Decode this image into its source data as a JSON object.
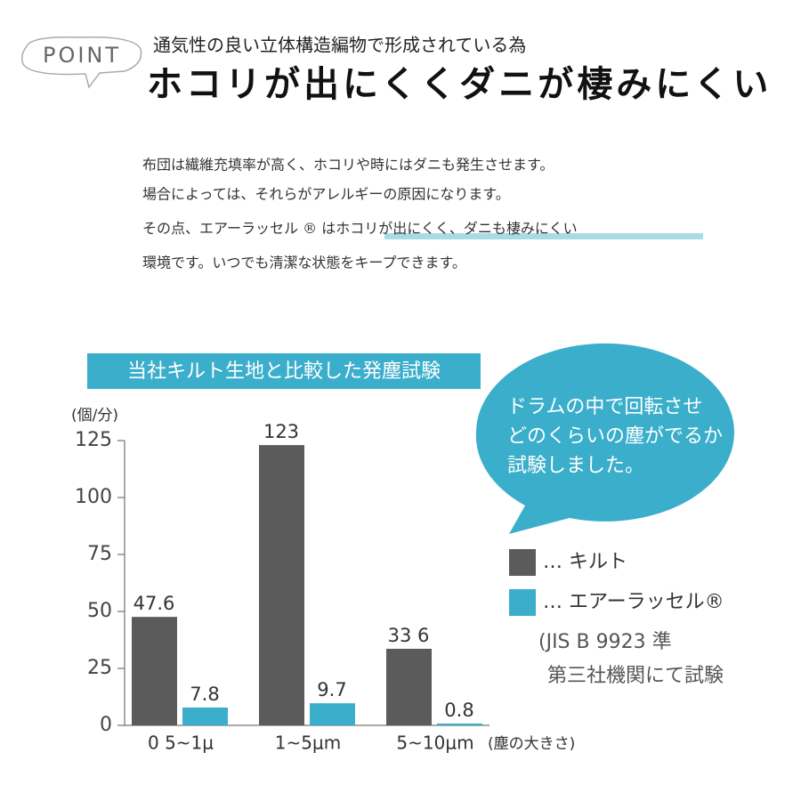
{
  "header": {
    "badge": "POINT",
    "subtitle": "通気性の良い立体構造編物で形成されている為",
    "title": "ホコリが出にくくダニが棲みにくい"
  },
  "body": {
    "lines": [
      "布団は繊維充填率が高く、ホコリや時にはダニも発生させます。",
      "場合によっては、それらがアレルギーの原因になります。",
      [
        "その点、エアーラッセル ® は",
        "ホコリが出にくく、ダニも棲みにくい"
      ],
      "環境です。いつでも清潔な状態をキープできます。"
    ]
  },
  "bubble": {
    "lines": [
      "ドラムの中で回転させ",
      "どのくらいの塵がでるか",
      "試験しました。"
    ]
  },
  "note": {
    "lines": [
      "(JIS B 9923 準",
      "第三社機関にて試験"
    ]
  },
  "chart_data": {
    "type": "bar",
    "title": "当社キルト生地と比較した発塵試験",
    "y_label": "(個/分)",
    "x_label": "(塵の大きさ)",
    "categories": [
      "0 5~1μ",
      "1~5μm",
      "5~10μm"
    ],
    "series": [
      {
        "name": "… キルト",
        "color": "#5b5b5b",
        "values": [
          47.6,
          123,
          33.6
        ],
        "value_labels": [
          "47.6",
          "123",
          "33 6"
        ]
      },
      {
        "name": "… エアーラッセル®",
        "color": "#3aaecb",
        "values": [
          7.8,
          9.7,
          0.8
        ]
      }
    ],
    "ylim": [
      0,
      125
    ],
    "yticks": [
      0,
      25,
      50,
      75,
      100,
      125
    ]
  }
}
